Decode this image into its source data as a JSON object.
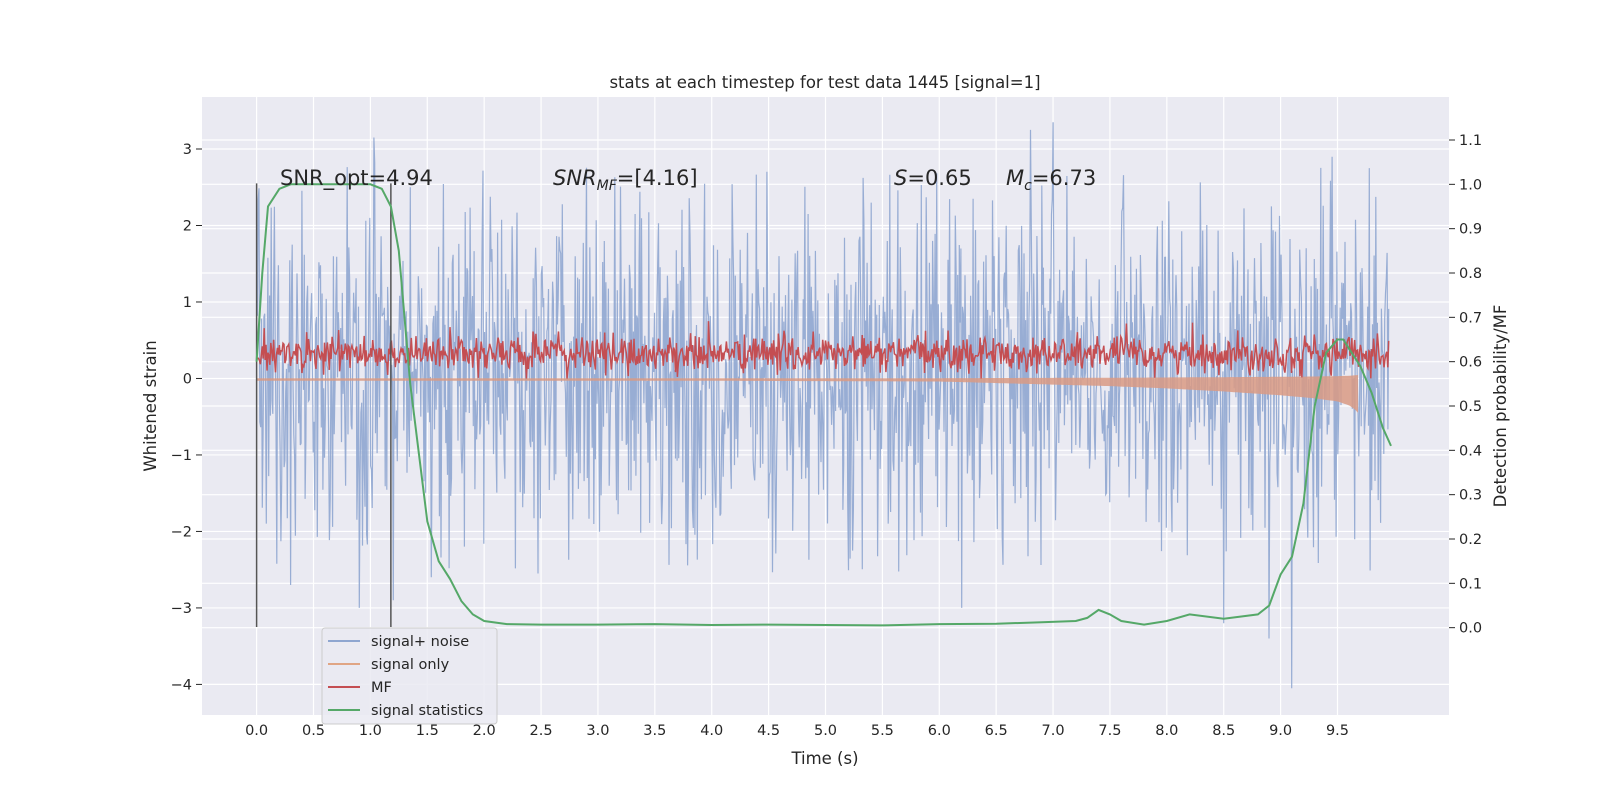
{
  "chart_data": {
    "type": "line",
    "title": "stats at each timestep for test data 1445 [signal=1]",
    "xlabel": "Time (s)",
    "ylabel": "Whitened strain",
    "y2label": "Detection probability/MF",
    "xlim": [
      -0.48,
      10.48
    ],
    "ylim": [
      -4.4,
      3.68
    ],
    "y2lim": [
      -0.197,
      1.197
    ],
    "x_ticks": [
      "0.0",
      "0.5",
      "1.0",
      "1.5",
      "2.0",
      "2.5",
      "3.0",
      "3.5",
      "4.0",
      "4.5",
      "5.0",
      "5.5",
      "6.0",
      "6.5",
      "7.0",
      "7.5",
      "8.0",
      "8.5",
      "9.0",
      "9.5"
    ],
    "y_ticks": [
      "−4",
      "−3",
      "−2",
      "−1",
      "0",
      "1",
      "2",
      "3"
    ],
    "y2_ticks": [
      "0.0",
      "0.1",
      "0.2",
      "0.3",
      "0.4",
      "0.5",
      "0.6",
      "0.7",
      "0.8",
      "0.9",
      "1.0",
      "1.1"
    ],
    "grid": true,
    "legend_position": "lower-left",
    "annotations": {
      "snr_opt": "SNR_opt=4.94",
      "snr_mf_main": "SNR",
      "snr_mf_sub": "MF",
      "snr_mf_value": "=[4.16]",
      "s_symbol": "S",
      "s_value": "=0.65",
      "mc_symbol": "M",
      "mc_sub": "c",
      "mc_value": "=6.73"
    },
    "vertical_markers": [
      0.0,
      1.18
    ],
    "series": [
      {
        "name": "signal+ noise",
        "color": "#8fa6d0",
        "axis": "left",
        "envelope": {
          "x": [
            0,
            1,
            2,
            3,
            4,
            5,
            6,
            7,
            8,
            9,
            9.95
          ],
          "upper": [
            2.1,
            2.3,
            2.2,
            2.3,
            2.2,
            2.1,
            2.2,
            2.3,
            2.2,
            2.3,
            2.0
          ],
          "lower": [
            -1.9,
            -2.1,
            -2.0,
            -2.0,
            -2.1,
            -2.0,
            -2.0,
            -2.0,
            -2.0,
            -2.1,
            -1.9
          ]
        },
        "peaks": [
          [
            1.03,
            3.15
          ],
          [
            6.8,
            3.25
          ],
          [
            7.0,
            3.35
          ],
          [
            6.2,
            -3.0
          ],
          [
            9.1,
            -4.05
          ],
          [
            8.9,
            -3.4
          ],
          [
            1.2,
            -2.9
          ],
          [
            0.9,
            -3.0
          ],
          [
            9.45,
            2.9
          ],
          [
            9.78,
            2.75
          ],
          [
            0.3,
            -2.7
          ],
          [
            8.5,
            -3.2
          ]
        ]
      },
      {
        "name": "signal only",
        "color": "#dd8452",
        "axis": "left",
        "chirp": {
          "x": [
            0,
            1,
            2,
            3,
            4,
            5,
            6,
            6.5,
            7,
            7.5,
            8,
            8.5,
            9,
            9.3,
            9.5,
            9.6,
            9.65,
            9.68
          ],
          "amp": [
            0.03,
            0.03,
            0.03,
            0.03,
            0.03,
            0.035,
            0.04,
            0.06,
            0.08,
            0.1,
            0.13,
            0.17,
            0.22,
            0.26,
            0.3,
            0.35,
            0.4,
            0.45
          ]
        }
      },
      {
        "name": "MF",
        "color": "#c44e52",
        "axis": "left",
        "band": {
          "low": 0.05,
          "high": 0.6,
          "max_peak": 0.98
        }
      },
      {
        "name": "signal statistics",
        "color": "#55a868",
        "axis": "right",
        "x": [
          0.0,
          0.05,
          0.1,
          0.2,
          0.3,
          0.5,
          0.8,
          1.0,
          1.1,
          1.18,
          1.25,
          1.35,
          1.5,
          1.6,
          1.7,
          1.8,
          1.9,
          2.0,
          2.2,
          2.5,
          3.0,
          3.5,
          4.0,
          4.5,
          5.0,
          5.5,
          6.0,
          6.5,
          6.9,
          7.2,
          7.3,
          7.4,
          7.5,
          7.6,
          7.8,
          8.0,
          8.2,
          8.5,
          8.8,
          8.9,
          9.0,
          9.1,
          9.2,
          9.3,
          9.4,
          9.5,
          9.55,
          9.6,
          9.7,
          9.8,
          9.9,
          9.97
        ],
        "y": [
          0.6,
          0.8,
          0.95,
          0.99,
          1.0,
          1.0,
          1.0,
          1.0,
          0.99,
          0.95,
          0.85,
          0.55,
          0.24,
          0.15,
          0.11,
          0.06,
          0.03,
          0.015,
          0.008,
          0.007,
          0.007,
          0.008,
          0.006,
          0.007,
          0.006,
          0.005,
          0.008,
          0.009,
          0.012,
          0.015,
          0.022,
          0.04,
          0.03,
          0.015,
          0.007,
          0.015,
          0.03,
          0.02,
          0.03,
          0.05,
          0.12,
          0.16,
          0.28,
          0.5,
          0.62,
          0.65,
          0.65,
          0.63,
          0.59,
          0.53,
          0.45,
          0.41
        ]
      }
    ]
  }
}
